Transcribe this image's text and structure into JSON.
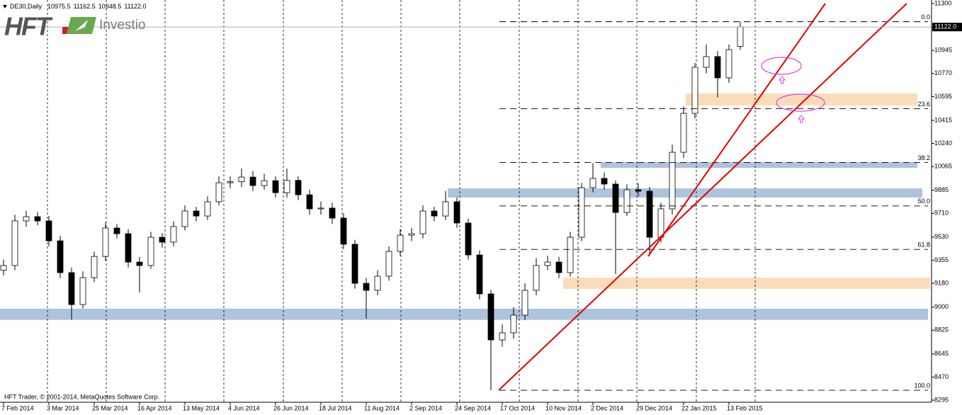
{
  "chart_data": {
    "type": "candlestick",
    "symbol": "DE30,Daily",
    "header_values": [
      {
        "value": 10975.5,
        "label": "10975.5"
      },
      {
        "value": 11162.5,
        "label": "11162.5"
      },
      {
        "value": 10948.5,
        "label": "10948.5"
      },
      {
        "value": 11122,
        "label": "11122.0"
      }
    ],
    "logo": {
      "brand": "HFT",
      "name": "Investio"
    },
    "footer": "HFT Trader, © 2001-2014, MetaQuotes Software Corp.",
    "ylim": [
      8295,
      11300
    ],
    "yticks": [
      8295,
      8470,
      8645,
      8825,
      9000,
      9180,
      9355,
      9530,
      9710,
      9885,
      10065,
      10240,
      10415,
      10595,
      10770,
      10945,
      11300
    ],
    "last_price": {
      "value": 11122,
      "label": "11122.0"
    },
    "xticks": [
      {
        "value": 0,
        "label": "7 Feb 2014"
      },
      {
        "value": 16,
        "label": "3 Mar 2014"
      },
      {
        "value": 32,
        "label": "25 Mar 2014"
      },
      {
        "value": 48,
        "label": "16 Apr 2014"
      },
      {
        "value": 64,
        "label": "13 May 2014"
      },
      {
        "value": 80,
        "label": "4 Jun 2014"
      },
      {
        "value": 96,
        "label": "26 Jun 2014"
      },
      {
        "value": 112,
        "label": "18 Jul 2014"
      },
      {
        "value": 128,
        "label": "11 Aug 2014"
      },
      {
        "value": 144,
        "label": "2 Sep 2014"
      },
      {
        "value": 160,
        "label": "24 Sep 2014"
      },
      {
        "value": 176,
        "label": "17 Oct 2014"
      },
      {
        "value": 192,
        "label": "10 Nov 2014"
      },
      {
        "value": 208,
        "label": "2 Dec 2014"
      },
      {
        "value": 224,
        "label": "29 Dec 2014"
      },
      {
        "value": 240,
        "label": "22 Jan 2015"
      },
      {
        "value": 256,
        "label": "13 Feb 2015"
      }
    ],
    "x_grid": [
      15.5,
      36.25,
      57,
      77.75,
      98.75,
      119.5,
      140.25,
      161,
      182,
      202.75,
      223.5,
      244.5,
      265.25
    ],
    "candles": {
      "x": [
        0,
        4,
        8,
        12,
        16,
        20,
        24,
        28,
        32,
        36,
        40,
        44,
        48,
        52,
        56,
        60,
        64,
        68,
        72,
        76,
        80,
        84,
        88,
        92,
        96,
        100,
        104,
        108,
        112,
        116,
        120,
        124,
        128,
        132,
        136,
        140,
        144,
        148,
        152,
        156,
        160,
        164,
        168,
        172,
        176,
        180,
        184,
        188,
        192,
        196,
        200,
        204,
        208,
        212,
        216,
        220,
        224,
        228,
        232,
        236,
        240,
        244,
        248,
        252,
        256,
        260
      ],
      "open": [
        9280,
        9315,
        9653,
        9685,
        9653,
        9502,
        9261,
        9019,
        9223,
        9384,
        9599,
        9556,
        9341,
        9315,
        9529,
        9492,
        9610,
        9728,
        9690,
        9798,
        9942,
        9950,
        9985,
        9921,
        9958,
        9867,
        9960,
        9851,
        9744,
        9750,
        9674,
        9476,
        9180,
        9127,
        9234,
        9422,
        9545,
        9556,
        9728,
        9690,
        9798,
        9637,
        9395,
        9100,
        8751,
        8805,
        8939,
        9127,
        9315,
        9341,
        9261,
        9529,
        9905,
        9975,
        9932,
        9717,
        9889,
        9878,
        9529,
        9744,
        10173,
        10468,
        10817,
        10898,
        10737,
        10975.5
      ],
      "high": [
        9360,
        9700,
        9730,
        9720,
        9690,
        9540,
        9300,
        9270,
        9420,
        9640,
        9630,
        9590,
        9380,
        9570,
        9560,
        9650,
        9770,
        9760,
        9840,
        9990,
        9990,
        10050,
        10030,
        10010,
        9990,
        10050,
        9990,
        9890,
        9800,
        9790,
        9710,
        9510,
        9220,
        9280,
        9460,
        9590,
        9600,
        9770,
        9760,
        9880,
        9830,
        9670,
        9430,
        9130,
        8870,
        9000,
        9180,
        9370,
        9390,
        9380,
        9570,
        9940,
        10090,
        10020,
        9960,
        9930,
        9940,
        9910,
        9790,
        10230,
        10520,
        10850,
        10990,
        10940,
        10990,
        11162.5
      ],
      "low": [
        9240,
        9280,
        9610,
        9620,
        9460,
        9220,
        8905,
        8990,
        9190,
        9350,
        9520,
        9300,
        9110,
        9290,
        9450,
        9460,
        9580,
        9650,
        9660,
        9770,
        9900,
        9910,
        9880,
        9890,
        9830,
        9830,
        9810,
        9700,
        9700,
        9630,
        9440,
        9140,
        8912,
        9090,
        9200,
        9390,
        9500,
        9520,
        9650,
        9660,
        9600,
        9360,
        9060,
        8370,
        8700,
        8760,
        8900,
        9090,
        9280,
        9220,
        9230,
        9500,
        9870,
        9890,
        9250,
        9690,
        9840,
        9400,
        9490,
        9700,
        10130,
        10430,
        10770,
        10590,
        10700,
        10948.5
      ],
      "close": [
        9315,
        9653,
        9685,
        9653,
        9502,
        9261,
        9019,
        9223,
        9384,
        9599,
        9556,
        9341,
        9315,
        9529,
        9492,
        9610,
        9728,
        9690,
        9798,
        9942,
        9950,
        9985,
        9921,
        9958,
        9867,
        9960,
        9851,
        9744,
        9750,
        9674,
        9476,
        9180,
        9127,
        9234,
        9422,
        9545,
        9556,
        9728,
        9690,
        9798,
        9637,
        9395,
        9100,
        8751,
        8805,
        8939,
        9127,
        9315,
        9341,
        9261,
        9529,
        9905,
        9975,
        9932,
        9717,
        9889,
        9878,
        9529,
        9744,
        10173,
        10468,
        10817,
        10898,
        10737,
        10951,
        11122
      ]
    },
    "zones": [
      {
        "color": "#aec3dc",
        "x": [
          -1.25,
          326.25
        ],
        "y": [
          8988,
          8903
        ]
      },
      {
        "color": "#aec3dc",
        "x": [
          156.75,
          324.25
        ],
        "y": [
          9900,
          9830
        ]
      },
      {
        "color": "#aec3dc",
        "x": [
          210.75,
          322.5
        ],
        "y": [
          10098,
          10055
        ]
      },
      {
        "color": "#fcdcb8",
        "x": [
          197.5,
          327
        ],
        "y": [
          9223,
          9138
        ]
      },
      {
        "color": "#fcdcb8",
        "x": [
          240.75,
          322.5
        ],
        "y": [
          10618,
          10527
        ]
      }
    ],
    "trendlines": [
      {
        "color": "#e00000",
        "x": [
          174.75,
          318.75
        ],
        "y": [
          8370,
          11300
        ]
      },
      {
        "color": "#e00000",
        "x": [
          227.5,
          290
        ],
        "y": [
          9385,
          11300
        ]
      }
    ],
    "fibo": {
      "low": 8370,
      "high": 11162.5,
      "start": 175,
      "levels": [
        {
          "value": 0,
          "label": "0.0"
        },
        23.6,
        38.2,
        {
          "value": 50,
          "label": "50.0"
        },
        61.8,
        {
          "value": 100,
          "label": "100.0"
        }
      ]
    }
  }
}
